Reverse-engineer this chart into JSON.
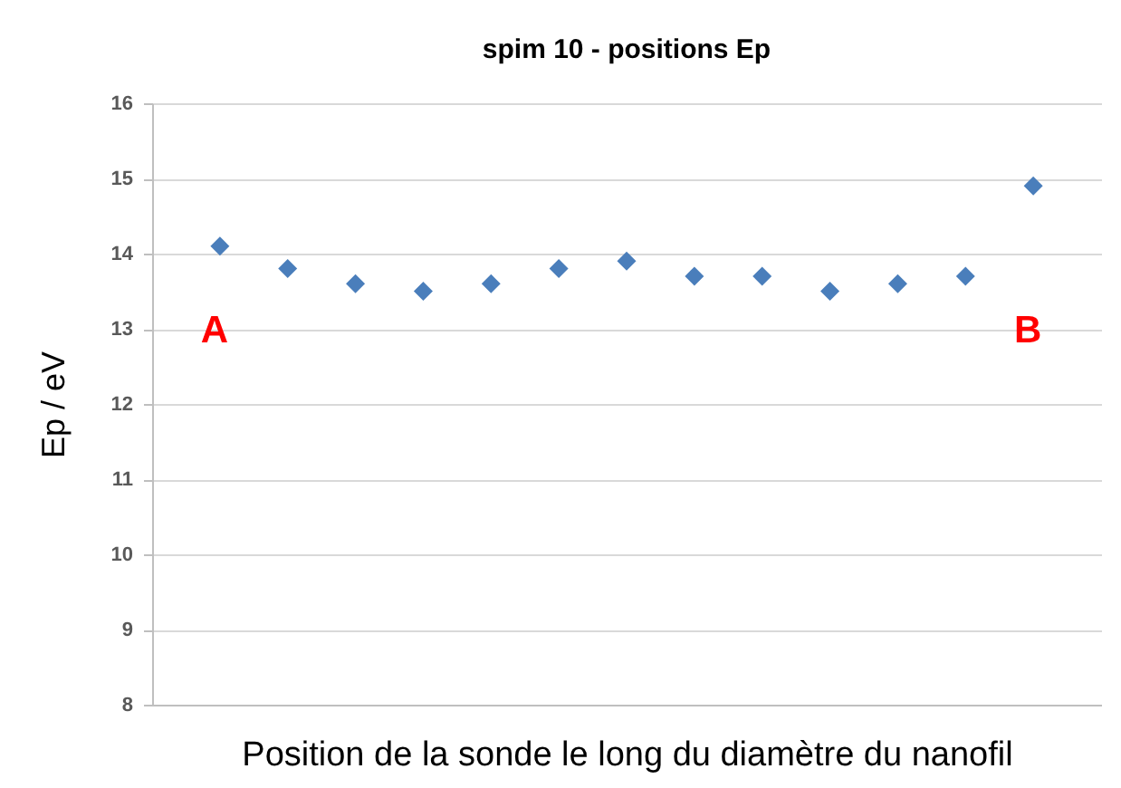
{
  "chart_data": {
    "type": "scatter",
    "title": "spim 10 - positions Ep",
    "xlabel": "Position de la sonde le long du diamètre du nanofil",
    "ylabel": "Ep / eV",
    "categories": [
      null,
      null,
      null,
      null,
      null,
      null,
      null,
      null,
      null,
      null,
      null,
      null,
      null
    ],
    "series": [
      {
        "color": "#4a7ebb",
        "values": [
          14.1,
          13.8,
          13.6,
          13.5,
          13.6,
          13.8,
          13.9,
          13.7,
          13.7,
          13.5,
          13.6,
          13.7,
          14.9
        ]
      }
    ],
    "annotations": [
      "A",
      "B"
    ],
    "ylim": [
      8,
      16
    ],
    "yticks": [
      8,
      9,
      10,
      11,
      12,
      13,
      14,
      15,
      16
    ],
    "grid": "y",
    "tick_labels": "y",
    "marker": "diamond"
  }
}
